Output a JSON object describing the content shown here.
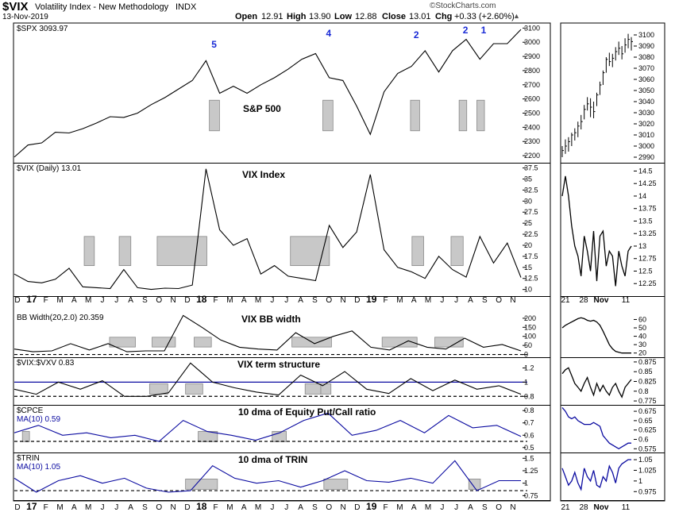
{
  "header": {
    "symbol": "$VIX",
    "name": "Volatility Index - New Methodology",
    "exchange": "INDX",
    "date": "13-Nov-2019",
    "open_label": "Open",
    "open": "12.91",
    "high_label": "High",
    "high": "13.90",
    "low_label": "Low",
    "low": "12.88",
    "close_label": "Close",
    "close": "13.01",
    "chg_label": "Chg",
    "chg": "+0.33 (+2.60%)",
    "watermark": "©StockCharts.com"
  },
  "colors": {
    "price": "#000000",
    "blue_line": "#0a0aa0",
    "highlight": "#c8c8c8",
    "wave_label": "#1a2bd6"
  },
  "chart_data": [
    {
      "type": "line",
      "legend": "$SPX 3093.97",
      "annotation": "S&P 500",
      "wave_labels": [
        "5",
        "4",
        "2",
        "2",
        "1"
      ],
      "y_ticks": [
        2200,
        2300,
        2400,
        2500,
        2600,
        2700,
        2800,
        2900,
        3000,
        3100
      ],
      "ylim": [
        2150,
        3130
      ],
      "x": [
        "Dec-2016",
        "Jan-2017",
        "Feb-2017",
        "Mar-2017",
        "Apr-2017",
        "May-2017",
        "Jun-2017",
        "Jul-2017",
        "Aug-2017",
        "Sep-2017",
        "Oct-2017",
        "Nov-2017",
        "Dec-2017",
        "Jan-2018",
        "late-Jan-2018",
        "Feb-2018",
        "Mar-2018",
        "Apr-2018",
        "May-2018",
        "Jun-2018",
        "Jul-2018",
        "Aug-2018",
        "Sep-2018",
        "Oct-2018",
        "Nov-2018",
        "Dec-2018",
        "late-Dec-2018",
        "Jan-2019",
        "Feb-2019",
        "Mar-2019",
        "Apr-2019",
        "May-2019",
        "Jun-2019",
        "Jul-2019",
        "Aug-2019",
        "Sep-2019",
        "Oct-2019",
        "Nov-2019"
      ],
      "values": [
        2190,
        2275,
        2290,
        2365,
        2360,
        2390,
        2430,
        2475,
        2470,
        2500,
        2560,
        2610,
        2670,
        2730,
        2870,
        2640,
        2690,
        2640,
        2700,
        2750,
        2810,
        2880,
        2920,
        2750,
        2730,
        2550,
        2350,
        2650,
        2780,
        2830,
        2940,
        2790,
        2940,
        3020,
        2880,
        2990,
        2990,
        3090
      ],
      "inset": {
        "x_labels": [
          "21",
          "28",
          "Nov",
          "11"
        ],
        "y_ticks": [
          2990,
          3000,
          3010,
          3020,
          3030,
          3040,
          3050,
          3060,
          3070,
          3080,
          3090,
          3100
        ],
        "ylim": [
          2985,
          3110
        ],
        "bars": [
          [
            3000,
            2990,
            2996
          ],
          [
            3006,
            2993,
            3000
          ],
          [
            3008,
            2995,
            3004
          ],
          [
            3012,
            3000,
            3010
          ],
          [
            3016,
            3005,
            3012
          ],
          [
            3022,
            3008,
            3018
          ],
          [
            3028,
            3015,
            3022
          ],
          [
            3037,
            3024,
            3033
          ],
          [
            3044,
            3032,
            3038
          ],
          [
            3043,
            3026,
            3035
          ],
          [
            3040,
            3025,
            3031
          ],
          [
            3048,
            3036,
            3046
          ],
          [
            3058,
            3046,
            3055
          ],
          [
            3068,
            3055,
            3066
          ],
          [
            3080,
            3066,
            3078
          ],
          [
            3084,
            3072,
            3076
          ],
          [
            3083,
            3071,
            3079
          ],
          [
            3089,
            3077,
            3085
          ],
          [
            3094,
            3082,
            3088
          ],
          [
            3090,
            3078,
            3083
          ],
          [
            3097,
            3084,
            3091
          ],
          [
            3101,
            3088,
            3096
          ],
          [
            3098,
            3086,
            3094
          ]
        ]
      }
    },
    {
      "type": "line",
      "legend": "$VIX (Daily) 13.01",
      "annotation": "VIX Index",
      "y_ticks": [
        10.0,
        12.5,
        15.0,
        17.5,
        20.0,
        22.5,
        25.0,
        27.5,
        30.0,
        32.5,
        35.0,
        37.5
      ],
      "ylim": [
        8.5,
        38.5
      ],
      "x": [
        "Dec-2016",
        "Jan-2017",
        "Feb-2017",
        "Mar-2017",
        "Apr-2017",
        "May-2017",
        "Jun-2017",
        "Jul-2017",
        "Aug-2017",
        "Sep-2017",
        "Oct-2017",
        "Nov-2017",
        "Dec-2017",
        "Jan-2018",
        "early-Feb-2018",
        "Feb-2018",
        "Mar-2018",
        "Apr-2018",
        "May-2018",
        "Jun-2018",
        "Jul-2018",
        "Aug-2018",
        "Sep-2018",
        "Oct-2018",
        "Nov-2018",
        "Dec-2018",
        "late-Dec-2018",
        "Jan-2019",
        "Feb-2019",
        "Mar-2019",
        "Apr-2019",
        "May-2019",
        "Jun-2019",
        "Jul-2019",
        "Aug-2019",
        "Sep-2019",
        "Oct-2019",
        "Nov-2019"
      ],
      "values": [
        13.5,
        11.8,
        11.5,
        12.3,
        14.8,
        10.6,
        10.4,
        10.2,
        14.5,
        10.4,
        10.0,
        10.3,
        10.2,
        11.0,
        37.3,
        23.5,
        20.0,
        21.5,
        13.5,
        15.4,
        13.0,
        12.5,
        12.0,
        24.5,
        19.5,
        23.0,
        36.0,
        19.0,
        15.0,
        14.0,
        12.5,
        17.5,
        14.5,
        12.8,
        22.0,
        16.0,
        20.5,
        12.7
      ],
      "inset": {
        "x_labels": [
          "21",
          "28",
          "Nov",
          "11"
        ],
        "y_ticks": [
          12.25,
          12.5,
          12.75,
          13.0,
          13.25,
          13.5,
          13.75,
          14.0,
          14.25,
          14.5
        ],
        "ylim": [
          12.0,
          14.65
        ],
        "values": [
          14.0,
          14.4,
          14.0,
          13.4,
          13.0,
          12.8,
          12.4,
          13.2,
          12.9,
          12.5,
          13.3,
          12.3,
          13.2,
          13.3,
          12.6,
          12.9,
          12.8,
          12.2,
          12.9,
          12.6,
          12.4,
          12.9,
          13.0
        ]
      }
    },
    {
      "type": "line",
      "legend": "BB Width(20,2.0) 20.359",
      "annotation": "VIX BB width",
      "y_ticks": [
        0,
        50,
        100,
        150,
        200
      ],
      "ylim": [
        -15,
        230
      ],
      "reference_line": 0,
      "x": [
        "Dec-2016",
        "Jan-2017",
        "Apr-2017",
        "May-2017",
        "Jun-2017",
        "Aug-2017",
        "Oct-2017",
        "Dec-2017",
        "Jan-2018",
        "early-Feb-2018",
        "Feb-2018",
        "Mar-2018",
        "Apr-2018",
        "Jun-2018",
        "Aug-2018",
        "Oct-2018",
        "Nov-2018",
        "Dec-2018",
        "Jan-2019",
        "Feb-2019",
        "Apr-2019",
        "May-2019",
        "Jun-2019",
        "Jul-2019",
        "Aug-2019",
        "Sep-2019",
        "Oct-2019",
        "Nov-2019"
      ],
      "values": [
        30,
        15,
        20,
        60,
        25,
        60,
        15,
        20,
        20,
        215,
        150,
        80,
        40,
        30,
        25,
        120,
        60,
        100,
        130,
        40,
        25,
        75,
        40,
        30,
        90,
        40,
        55,
        20
      ],
      "inset": {
        "x_labels": [
          "21",
          "28",
          "Nov",
          "11"
        ],
        "y_ticks": [
          20,
          30,
          40,
          50,
          60
        ],
        "ylim": [
          15,
          68
        ],
        "values": [
          50,
          53,
          55,
          57,
          59,
          61,
          62,
          61,
          59,
          58,
          59,
          57,
          53,
          46,
          38,
          30,
          25,
          22,
          21,
          20,
          20,
          20,
          20
        ]
      }
    },
    {
      "type": "line",
      "legend": "$VIX:$VXV 0.83",
      "annotation": "VIX term structure",
      "y_ticks": [
        0.8,
        1.0,
        1.2
      ],
      "ylim": [
        0.68,
        1.34
      ],
      "reference_lines": [
        0.8,
        1.0
      ],
      "x": [
        "Dec-2016",
        "Jan-2017",
        "Apr-2017",
        "May-2017",
        "Aug-2017",
        "Oct-2017",
        "Dec-2017",
        "Jan-2018",
        "early-Feb-2018",
        "Mar-2018",
        "May-2018",
        "Jul-2018",
        "Sep-2018",
        "Oct-2018",
        "Dec-2018",
        "late-Dec-2018",
        "Jan-2019",
        "Mar-2019",
        "May-2019",
        "Jun-2019",
        "Aug-2019",
        "Sep-2019",
        "Oct-2019",
        "Nov-2019"
      ],
      "values": [
        0.9,
        0.83,
        1.0,
        0.9,
        1.02,
        0.8,
        0.8,
        0.85,
        1.27,
        1.0,
        0.92,
        0.86,
        0.82,
        1.1,
        0.95,
        1.15,
        0.9,
        0.84,
        1.05,
        0.88,
        1.03,
        0.9,
        0.95,
        0.83
      ],
      "inset": {
        "x_labels": [
          "21",
          "28",
          "Nov",
          "11"
        ],
        "y_ticks": [
          0.775,
          0.8,
          0.825,
          0.85,
          0.875
        ],
        "ylim": [
          0.765,
          0.885
        ],
        "values": [
          0.845,
          0.855,
          0.86,
          0.84,
          0.82,
          0.81,
          0.8,
          0.82,
          0.835,
          0.81,
          0.79,
          0.82,
          0.8,
          0.815,
          0.8,
          0.79,
          0.81,
          0.82,
          0.8,
          0.785,
          0.81,
          0.82,
          0.83
        ]
      }
    },
    {
      "type": "line",
      "legend": "$CPCE",
      "legend2": "MA(10) 0.59",
      "annotation": "10 dma of Equity Put/Call ratio",
      "y_ticks": [
        0.5,
        0.6,
        0.7,
        0.8
      ],
      "ylim": [
        0.46,
        0.84
      ],
      "reference_line": 0.55,
      "x": [
        "Dec-2016",
        "Feb-2017",
        "May-2017",
        "Aug-2017",
        "Oct-2017",
        "Dec-2017",
        "Jan-2018",
        "early-Feb-2018",
        "Apr-2018",
        "Jun-2018",
        "Jul-2018",
        "Sep-2018",
        "Oct-2018",
        "Dec-2018",
        "Jan-2019",
        "Mar-2019",
        "May-2019",
        "Jun-2019",
        "Aug-2019",
        "Sep-2019",
        "Oct-2019",
        "Nov-2019"
      ],
      "values": [
        0.62,
        0.68,
        0.6,
        0.62,
        0.58,
        0.6,
        0.55,
        0.72,
        0.63,
        0.6,
        0.56,
        0.62,
        0.72,
        0.78,
        0.6,
        0.64,
        0.72,
        0.62,
        0.76,
        0.66,
        0.68,
        0.59
      ],
      "inset": {
        "x_labels": [
          "21",
          "28",
          "Nov",
          "11"
        ],
        "y_ticks": [
          0.575,
          0.6,
          0.625,
          0.65,
          0.675
        ],
        "ylim": [
          0.565,
          0.69
        ],
        "values": [
          0.685,
          0.675,
          0.66,
          0.655,
          0.66,
          0.65,
          0.645,
          0.64,
          0.64,
          0.64,
          0.645,
          0.64,
          0.635,
          0.61,
          0.6,
          0.59,
          0.585,
          0.58,
          0.575,
          0.58,
          0.585,
          0.59,
          0.59
        ]
      }
    },
    {
      "type": "line",
      "legend": "$TRIN",
      "legend2": "MA(10) 1.05",
      "annotation": "10 dma of TRIN",
      "y_ticks": [
        0.75,
        1.0,
        1.25,
        1.5
      ],
      "ylim": [
        0.66,
        1.6
      ],
      "reference_line": 0.85,
      "x": [
        "Dec-2016",
        "Jan-2017",
        "Mar-2017",
        "May-2017",
        "Jul-2017",
        "Sep-2017",
        "Nov-2017",
        "Dec-2017",
        "Jan-2018",
        "early-Feb-2018",
        "Mar-2018",
        "May-2018",
        "Jul-2018",
        "Sep-2018",
        "Oct-2018",
        "Dec-2018",
        "Jan-2019",
        "Mar-2019",
        "May-2019",
        "Jul-2019",
        "Aug-2019",
        "Sep-2019",
        "Oct-2019",
        "Nov-2019"
      ],
      "values": [
        1.1,
        0.82,
        1.05,
        1.15,
        1.0,
        1.1,
        0.9,
        0.82,
        0.85,
        1.35,
        1.1,
        1.0,
        1.05,
        0.92,
        1.05,
        1.25,
        1.05,
        1.02,
        1.1,
        1.0,
        1.45,
        0.85,
        1.05,
        1.05
      ],
      "inset": {
        "x_labels": [
          "21",
          "28",
          "Nov",
          "11"
        ],
        "y_ticks": [
          0.975,
          1.0,
          1.025,
          1.05
        ],
        "ylim": [
          0.955,
          1.065
        ],
        "values": [
          1.03,
          1.01,
          0.99,
          1.0,
          1.02,
          0.995,
          0.98,
          1.03,
          1.01,
          1.0,
          1.025,
          0.99,
          0.985,
          1.01,
          1.0,
          1.035,
          1.02,
          0.995,
          1.03,
          1.04,
          1.045,
          1.05,
          1.05
        ]
      }
    }
  ],
  "x_axis": {
    "labels": [
      "D",
      "17",
      "F",
      "M",
      "A",
      "M",
      "J",
      "J",
      "A",
      "S",
      "O",
      "N",
      "D",
      "18",
      "F",
      "M",
      "A",
      "M",
      "J",
      "J",
      "A",
      "S",
      "O",
      "N",
      "D",
      "19",
      "F",
      "M",
      "A",
      "M",
      "J",
      "J",
      "A",
      "S",
      "O",
      "N"
    ]
  }
}
